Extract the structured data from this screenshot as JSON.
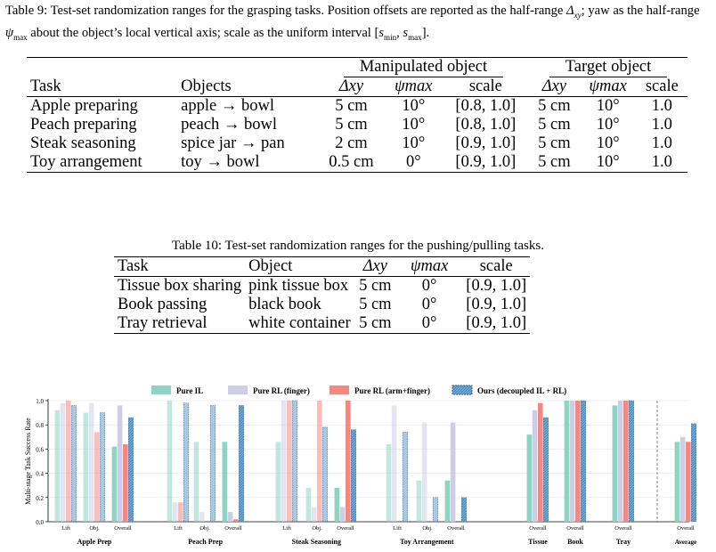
{
  "table9": {
    "caption": "Table 9: Test-set randomization ranges for the grasping tasks. Position offsets are reported as the half-range Δxy; yaw as the half-range ψmax about the object’s local vertical axis; scale as the uniform interval [smin, smax].",
    "group_manipulated": "Manipulated object",
    "group_target": "Target object",
    "headers": [
      "Task",
      "Objects",
      "Δxy",
      "ψmax",
      "scale",
      "Δxy",
      "ψmax",
      "scale"
    ],
    "rows": [
      [
        "Apple preparing",
        "apple → bowl",
        "5 cm",
        "10°",
        "[0.8, 1.0]",
        "5 cm",
        "10°",
        "1.0"
      ],
      [
        "Peach preparing",
        "peach → bowl",
        "5 cm",
        "10°",
        "[0.8, 1.0]",
        "5 cm",
        "10°",
        "1.0"
      ],
      [
        "Steak seasoning",
        "spice jar → pan",
        "2 cm",
        "10°",
        "[0.9, 1.0]",
        "5 cm",
        "10°",
        "1.0"
      ],
      [
        "Toy arrangement",
        "toy → bowl",
        "0.5 cm",
        "0°",
        "[0.9, 1.0]",
        "5 cm",
        "10°",
        "1.0"
      ]
    ]
  },
  "table10": {
    "caption": "Table 10: Test-set randomization ranges for the pushing/pulling tasks.",
    "headers": [
      "Task",
      "Object",
      "Δxy",
      "ψmax",
      "scale"
    ],
    "rows": [
      [
        "Tissue box sharing",
        "pink tissue box",
        "5 cm",
        "0°",
        "[0.9, 1.0]"
      ],
      [
        "Book passing",
        "black book",
        "5 cm",
        "0°",
        "[0.9, 1.0]"
      ],
      [
        "Tray retrieval",
        "white container",
        "5 cm",
        "0°",
        "[0.9, 1.0]"
      ]
    ]
  },
  "chart_data": {
    "type": "bar",
    "ylabel": "Multi-stage Task Success Rate",
    "ylim": [
      0,
      1.0
    ],
    "yticks": [
      "0.0",
      "0.2",
      "0.4",
      "0.6",
      "0.8",
      "1.0"
    ],
    "legend_placement": "top-center",
    "series": [
      {
        "name": "Pure IL",
        "color": "#8fd3c2"
      },
      {
        "name": "Pure RL (finger)",
        "color": "#cfcde6"
      },
      {
        "name": "Pure RL (arm+finger)",
        "color": "#f08a80"
      },
      {
        "name": "Ours (decoupled IL + RL)",
        "color": "#6fa8d6"
      }
    ],
    "groups": [
      {
        "name": "Apple Prep",
        "subs": [
          {
            "label": "Lift",
            "values": [
              0.92,
              0.98,
              1.0,
              0.96
            ]
          },
          {
            "label": "Obj.",
            "values": [
              0.9,
              0.98,
              0.74,
              0.9
            ]
          },
          {
            "label": "Overall",
            "values": [
              0.62,
              0.96,
              0.64,
              0.86
            ]
          }
        ]
      },
      {
        "name": "Peach Prep",
        "subs": [
          {
            "label": "Lift",
            "values": [
              1.0,
              0.16,
              0.16,
              0.98
            ]
          },
          {
            "label": "Obj.",
            "values": [
              0.66,
              0.08,
              0.0,
              0.96
            ]
          },
          {
            "label": "Overall",
            "values": [
              0.66,
              0.08,
              0.02,
              0.96
            ]
          }
        ]
      },
      {
        "name": "Steak Seasoning",
        "subs": [
          {
            "label": "Lift",
            "values": [
              0.66,
              1.0,
              1.0,
              1.0
            ]
          },
          {
            "label": "Obj.",
            "values": [
              0.28,
              0.12,
              1.0,
              0.78
            ]
          },
          {
            "label": "Overall",
            "values": [
              0.28,
              0.12,
              1.0,
              0.76
            ]
          }
        ]
      },
      {
        "name": "Toy Arrangement",
        "subs": [
          {
            "label": "Lift",
            "values": [
              0.64,
              0.96,
              0.0,
              0.74
            ]
          },
          {
            "label": "Obj.",
            "values": [
              0.34,
              0.82,
              0.0,
              0.2
            ]
          },
          {
            "label": "Overall",
            "values": [
              0.34,
              0.82,
              0.0,
              0.2
            ]
          }
        ]
      },
      {
        "name": "Tissue",
        "subs": [
          {
            "label": "Overall",
            "values": [
              0.72,
              0.92,
              0.98,
              0.86
            ]
          }
        ]
      },
      {
        "name": "Book",
        "subs": [
          {
            "label": "Overall",
            "values": [
              1.0,
              1.0,
              1.0,
              1.0
            ]
          }
        ]
      },
      {
        "name": "Tray",
        "subs": [
          {
            "label": "Overall",
            "values": [
              0.96,
              1.0,
              1.0,
              1.0
            ]
          }
        ]
      },
      {
        "name": "Average",
        "subs": [
          {
            "label": "Overall",
            "values": [
              0.66,
              0.7,
              0.66,
              0.81
            ]
          }
        ]
      }
    ]
  }
}
